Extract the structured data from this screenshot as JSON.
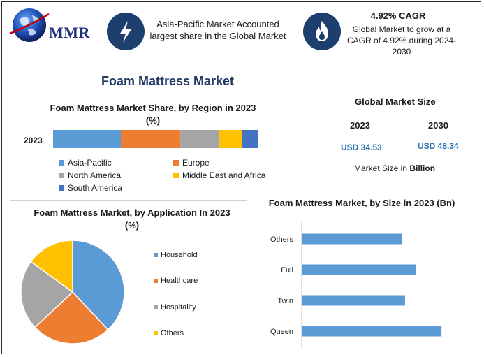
{
  "brand": {
    "logo_text": "MMR"
  },
  "header": {
    "info1": {
      "text": "Asia-Pacific Market Accounted largest share in the Global Market",
      "icon": "lightning-icon"
    },
    "info2": {
      "heading": "4.92% CAGR",
      "text": "Global Market to grow at a CAGR of 4.92% during 2024-2030",
      "icon": "flame-icon"
    }
  },
  "main_title": "Foam Mattress Market",
  "global_size": {
    "title": "Global Market Size",
    "year1": "2023",
    "year2": "2030",
    "value1": "USD 34.53",
    "value2": "USD 48.34",
    "unit_prefix": "Market Size in",
    "unit_bold": "Billion"
  },
  "colors": {
    "blue": "#5b9bd5",
    "orange": "#ed7d31",
    "gray": "#a5a5a5",
    "yellow": "#ffc000",
    "darkblue": "#4472c4",
    "navy": "#1d3f6e"
  },
  "chart_data": [
    {
      "type": "bar",
      "orientation": "horizontal-stacked-100",
      "title": "Foam Mattress Market Share, by Region in 2023 (%)",
      "categories": [
        "2023"
      ],
      "series": [
        {
          "name": "Asia-Pacific",
          "values": [
            33
          ],
          "color": "#5b9bd5"
        },
        {
          "name": "Europe",
          "values": [
            29
          ],
          "color": "#ed7d31"
        },
        {
          "name": "North America",
          "values": [
            19
          ],
          "color": "#a5a5a5"
        },
        {
          "name": "Middle East and Africa",
          "values": [
            11
          ],
          "color": "#ffc000"
        },
        {
          "name": "South America",
          "values": [
            8
          ],
          "color": "#4472c4"
        }
      ],
      "legend_position": "bottom"
    },
    {
      "type": "pie",
      "title": "Foam Mattress Market, by Application In 2023 (%)",
      "slices": [
        {
          "label": "Household",
          "value": 38,
          "color": "#5b9bd5"
        },
        {
          "label": "Healthcare",
          "value": 25,
          "color": "#ed7d31"
        },
        {
          "label": "Hospitality",
          "value": 22,
          "color": "#a5a5a5"
        },
        {
          "label": "Others",
          "value": 15,
          "color": "#ffc000"
        }
      ],
      "legend_position": "right"
    },
    {
      "type": "bar",
      "orientation": "horizontal",
      "title": "Foam Mattress Market, by Size in 2023 (Bn)",
      "categories": [
        "Others",
        "Full",
        "Twin",
        "Queen"
      ],
      "values": [
        7.4,
        8.4,
        7.6,
        10.3
      ],
      "color": "#5b9bd5",
      "xlim": [
        0,
        12
      ],
      "grid": false
    }
  ]
}
